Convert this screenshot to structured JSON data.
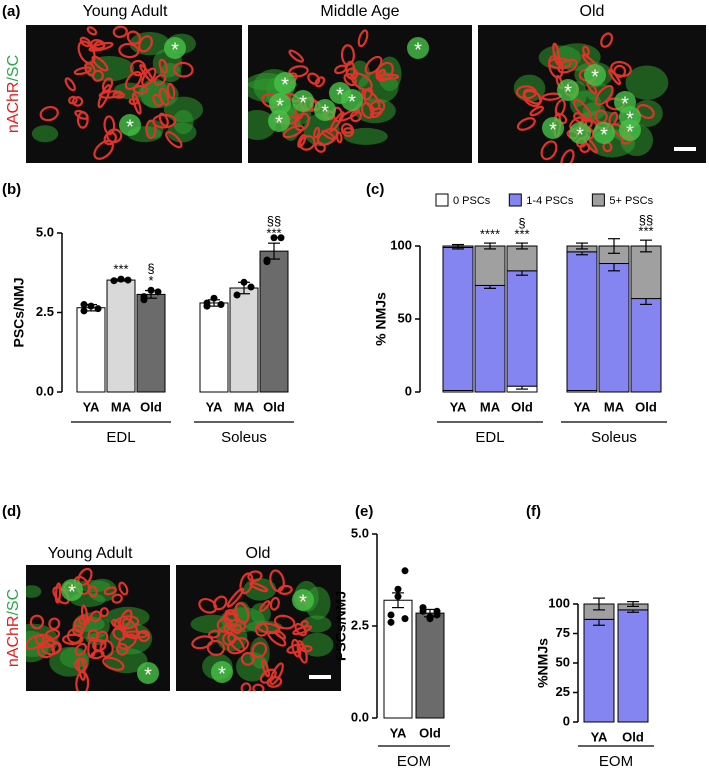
{
  "figure": {
    "panel_labels": [
      "(a)",
      "(b)",
      "(c)",
      "(d)",
      "(e)",
      "(f)"
    ],
    "stain_label": [
      "nAChR",
      "/SC"
    ],
    "image_titles_a": [
      "Young Adult",
      "Middle Age",
      "Old"
    ],
    "image_titles_d": [
      "Young Adult",
      "Old"
    ],
    "marker": "*"
  },
  "chart_data": [
    {
      "type": "bar",
      "ylabel": "PSCs/NMJ",
      "x_groups": [
        "EDL",
        "Soleus"
      ],
      "categories": [
        [
          "YA",
          "MA",
          "Old"
        ],
        [
          "YA",
          "MA",
          "Old"
        ]
      ],
      "colors": [
        "#ffffff",
        "#d9d9d9",
        "#6b6b6b"
      ],
      "values": [
        [
          2.65,
          3.52,
          3.07
        ],
        [
          2.8,
          3.27,
          4.43
        ]
      ],
      "errors": [
        [
          0.1,
          0.03,
          0.12
        ],
        [
          0.1,
          0.18,
          0.25
        ]
      ],
      "points": [
        [
          [
            2.55,
            2.7,
            2.62,
            2.75
          ],
          [
            3.5,
            3.55,
            3.52
          ],
          [
            2.9,
            3.2,
            3.15,
            3.0
          ]
        ],
        [
          [
            2.7,
            2.95,
            2.75,
            2.8
          ],
          [
            3.05,
            3.45,
            3.3
          ],
          [
            4.1,
            4.85,
            4.85,
            4.15
          ]
        ]
      ],
      "significance": [
        [
          [],
          [
            "***"
          ],
          [
            "*",
            "§"
          ]
        ],
        [
          [],
          [],
          [
            "***",
            "§§"
          ]
        ]
      ],
      "ylim": [
        0,
        5
      ],
      "yticks": [
        {
          "value": 0,
          "label": "0.0"
        },
        2.5,
        {
          "value": 5,
          "label": "5.0"
        }
      ]
    },
    {
      "type": "stacked",
      "ylabel": "% NMJs",
      "x_groups": [
        "EDL",
        "Soleus"
      ],
      "legend": true,
      "categories": [
        [
          "YA",
          "MA",
          "Old"
        ],
        [
          "YA",
          "MA",
          "Old"
        ]
      ],
      "series": [
        {
          "name": "0 PSCs",
          "color": "#ffffff",
          "values": [
            [
              1,
              0,
              4
            ],
            [
              1,
              0,
              0
            ]
          ],
          "errors": [
            [
              0,
              0,
              2
            ],
            [
              0,
              0,
              0
            ]
          ]
        },
        {
          "name": "1-4 PSCs",
          "color": "#8585f2",
          "values": [
            [
              98,
              73,
              79
            ],
            [
              95,
              88,
              64
            ]
          ],
          "errors": [
            [
              1,
              2,
              3
            ],
            [
              2,
              5,
              4
            ]
          ],
          "significance": [
            [
              [],
              [
                "***"
              ],
              [
                "***"
              ]
            ],
            [
              [],
              [],
              [
                "***",
                "§§"
              ]
            ]
          ]
        },
        {
          "name": "5+ PSCs",
          "color": "#a0a0a0",
          "values": [
            [
              1,
              27,
              17
            ],
            [
              4,
              12,
              36
            ]
          ],
          "errors": [
            [
              1,
              2,
              2
            ],
            [
              2,
              5,
              4
            ]
          ],
          "significance": [
            [
              [],
              [
                "****"
              ],
              [
                "***",
                "§"
              ]
            ],
            [
              [],
              [],
              [
                "***",
                "§§"
              ]
            ]
          ]
        }
      ],
      "ylim": [
        0,
        100
      ],
      "yticks": [
        0,
        50,
        100
      ]
    },
    {
      "type": "bar",
      "ylabel": "PSCs/NMJ",
      "x_groups": [
        "EOM"
      ],
      "categories": [
        [
          "YA",
          "Old"
        ]
      ],
      "colors": [
        "#ffffff",
        "#6b6b6b"
      ],
      "values": [
        [
          3.2,
          2.85
        ]
      ],
      "errors": [
        [
          0.2,
          0.1
        ]
      ],
      "points": [
        [
          [
            2.6,
            3.5,
            4.0,
            2.8,
            3.3,
            2.7
          ],
          [
            2.9,
            2.7,
            2.8,
            3.0,
            2.75,
            2.9
          ]
        ]
      ],
      "ylim": [
        0,
        5
      ],
      "yticks": [
        {
          "value": 0,
          "label": "0.0"
        },
        2.5,
        {
          "value": 5,
          "label": "5.0"
        }
      ]
    },
    {
      "type": "stacked",
      "ylabel": "%NMJs",
      "x_groups": [
        "EOM"
      ],
      "categories": [
        [
          "YA",
          "Old"
        ]
      ],
      "series": [
        {
          "color": "#8585f2",
          "values": [
            [
              87,
              95
            ]
          ],
          "errors": [
            [
              5,
              2
            ]
          ]
        },
        {
          "color": "#a0a0a0",
          "values": [
            [
              13,
              5
            ]
          ],
          "errors": [
            [
              5,
              2
            ]
          ]
        }
      ],
      "ylim": [
        0,
        100
      ],
      "yticks": [
        0,
        25,
        50,
        75,
        100
      ]
    }
  ]
}
